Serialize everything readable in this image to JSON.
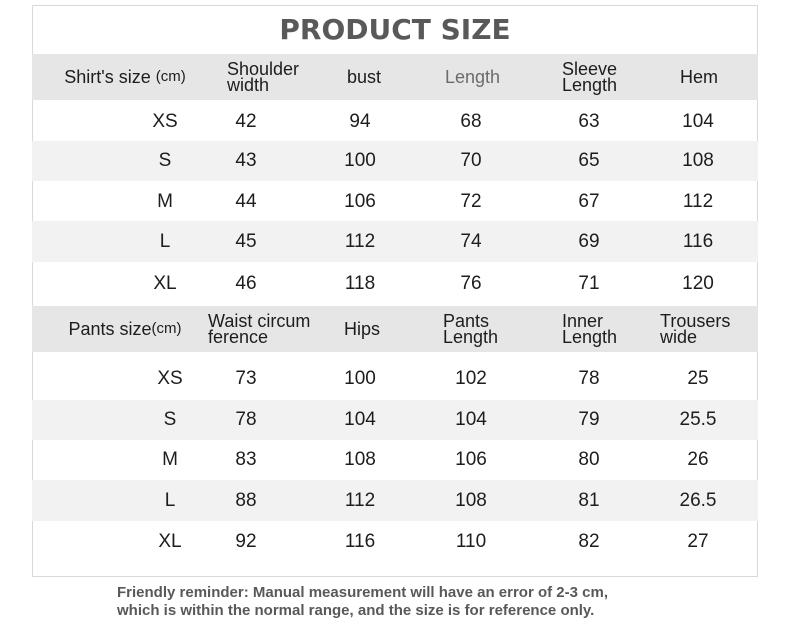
{
  "title": "PRODUCT SIZE",
  "shirt": {
    "header": {
      "size_main": "Shirt's size",
      "size_unit": "(cm)",
      "shoulder_1": "Shoulder",
      "shoulder_2": "width",
      "bust": "bust",
      "length": "Length",
      "sleeve_1": "Sleeve",
      "sleeve_2": "Length",
      "hem": "Hem"
    },
    "rows": [
      {
        "size": "XS",
        "shoulder": "42",
        "bust": "94",
        "length": "68",
        "sleeve": "63",
        "hem": "104"
      },
      {
        "size": "S",
        "shoulder": "43",
        "bust": "100",
        "length": "70",
        "sleeve": "65",
        "hem": "108"
      },
      {
        "size": "M",
        "shoulder": "44",
        "bust": "106",
        "length": "72",
        "sleeve": "67",
        "hem": "112"
      },
      {
        "size": "L",
        "shoulder": "45",
        "bust": "112",
        "length": "74",
        "sleeve": "69",
        "hem": "116"
      },
      {
        "size": "XL",
        "shoulder": "46",
        "bust": "118",
        "length": "76",
        "sleeve": "71",
        "hem": "120"
      }
    ]
  },
  "pants": {
    "header": {
      "size_main": "Pants size",
      "size_unit": "(cm)",
      "waist_1": "Waist circum",
      "waist_2": "ference",
      "hips": "Hips",
      "pants_len_1": "Pants",
      "pants_len_2": "Length",
      "inner_1": "Inner",
      "inner_2": "Length",
      "trousers_1": "Trousers",
      "trousers_2": "wide"
    },
    "rows": [
      {
        "size": "XS",
        "waist": "73",
        "hips": "100",
        "pants_length": "102",
        "inner": "78",
        "wide": "25"
      },
      {
        "size": "S",
        "waist": "78",
        "hips": "104",
        "pants_length": "104",
        "inner": "79",
        "wide": "25.5"
      },
      {
        "size": "M",
        "waist": "83",
        "hips": "108",
        "pants_length": "106",
        "inner": "80",
        "wide": "26"
      },
      {
        "size": "L",
        "waist": "88",
        "hips": "112",
        "pants_length": "108",
        "inner": "81",
        "wide": "26.5"
      },
      {
        "size": "XL",
        "waist": "92",
        "hips": "116",
        "pants_length": "110",
        "inner": "82",
        "wide": "27"
      }
    ]
  },
  "footnote": {
    "line1": "Friendly reminder: Manual measurement will have an error of 2-3 cm,",
    "line2": "which is within the normal range, and the size is for reference only."
  }
}
